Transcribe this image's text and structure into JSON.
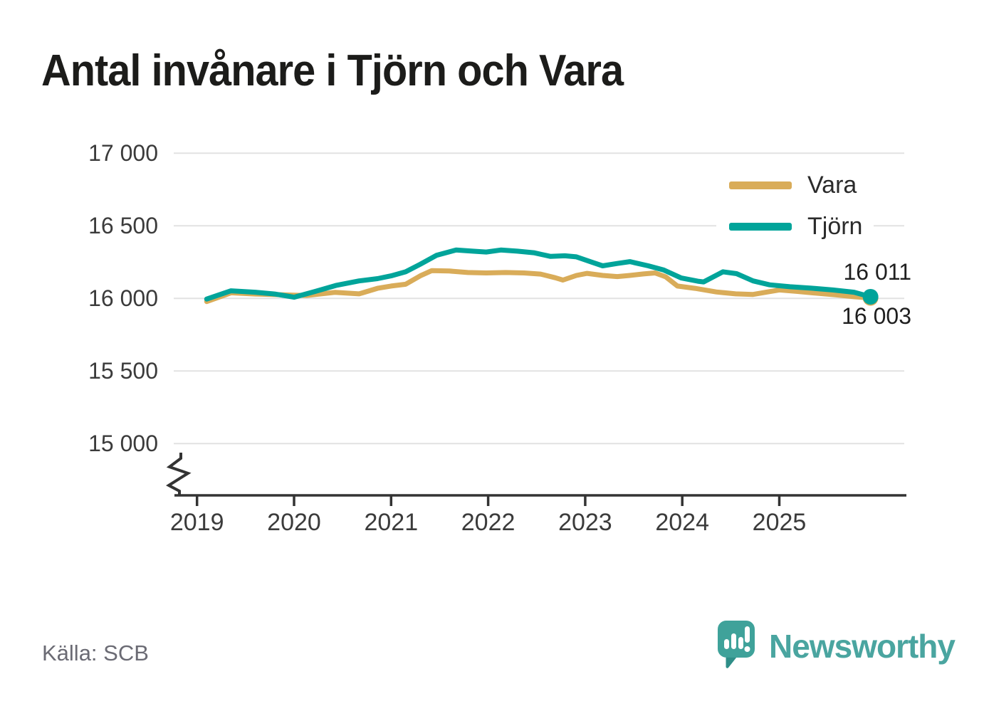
{
  "title": "Antal invånare i Tjörn och Vara",
  "source_label": "Källa: SCB",
  "branding": {
    "wordmark": "Newsworthy"
  },
  "colors": {
    "vara": "#D9AC59",
    "tjorn": "#00A49A",
    "grid": "#E2E2E2",
    "axis": "#333333",
    "tick_text": "#3B3B3B",
    "muted_text": "#6B6B74",
    "brand_bubble": "#3FA29A",
    "brand_wordmark": "#4AA5A0"
  },
  "chart_data": {
    "type": "line",
    "title": "Antal invånare i Tjörn och Vara",
    "source": "Källa: SCB",
    "grid": "horizontal",
    "legend_position": "top-right",
    "x_axis": {
      "ticks": [
        2019,
        2020,
        2021,
        2022,
        2023,
        2024,
        2025
      ],
      "axis_break": true
    },
    "y_axis": {
      "ticks": [
        {
          "value": 17000,
          "label": "17 000"
        },
        {
          "value": 16500,
          "label": "16 500"
        },
        {
          "value": 16000,
          "label": "16 000"
        },
        {
          "value": 15500,
          "label": "15 500"
        },
        {
          "value": 15000,
          "label": "15 000"
        }
      ]
    },
    "series": [
      {
        "name": "Vara",
        "color": "#D9AC59",
        "end_label": "16 003",
        "last_value": 16003,
        "end_dot": true,
        "points": [
          [
            2019.1,
            15978
          ],
          [
            2019.35,
            16038
          ],
          [
            2019.6,
            16030
          ],
          [
            2019.8,
            16026
          ],
          [
            2020.0,
            16022
          ],
          [
            2020.13,
            16020
          ],
          [
            2020.42,
            16041
          ],
          [
            2020.67,
            16031
          ],
          [
            2020.86,
            16069
          ],
          [
            2021.0,
            16085
          ],
          [
            2021.15,
            16097
          ],
          [
            2021.3,
            16155
          ],
          [
            2021.42,
            16191
          ],
          [
            2021.6,
            16188
          ],
          [
            2021.79,
            16178
          ],
          [
            2021.98,
            16175
          ],
          [
            2022.18,
            16178
          ],
          [
            2022.37,
            16175
          ],
          [
            2022.54,
            16167
          ],
          [
            2022.69,
            16142
          ],
          [
            2022.77,
            16126
          ],
          [
            2022.91,
            16158
          ],
          [
            2023.02,
            16172
          ],
          [
            2023.18,
            16158
          ],
          [
            2023.33,
            16150
          ],
          [
            2023.46,
            16158
          ],
          [
            2023.6,
            16168
          ],
          [
            2023.72,
            16175
          ],
          [
            2023.83,
            16148
          ],
          [
            2023.95,
            16085
          ],
          [
            2024.13,
            16069
          ],
          [
            2024.35,
            16044
          ],
          [
            2024.55,
            16031
          ],
          [
            2024.73,
            16027
          ],
          [
            2024.88,
            16044
          ],
          [
            2025.0,
            16058
          ],
          [
            2025.18,
            16048
          ],
          [
            2025.38,
            16036
          ],
          [
            2025.58,
            16024
          ],
          [
            2025.78,
            16011
          ],
          [
            2025.94,
            16003
          ]
        ]
      },
      {
        "name": "Tjörn",
        "color": "#00A49A",
        "end_label": "16 011",
        "last_value": 16011,
        "end_dot": true,
        "points": [
          [
            2019.1,
            15995
          ],
          [
            2019.35,
            16052
          ],
          [
            2019.6,
            16042
          ],
          [
            2019.8,
            16030
          ],
          [
            2020.0,
            16008
          ],
          [
            2020.22,
            16048
          ],
          [
            2020.44,
            16090
          ],
          [
            2020.67,
            16120
          ],
          [
            2020.86,
            16136
          ],
          [
            2021.0,
            16155
          ],
          [
            2021.15,
            16183
          ],
          [
            2021.3,
            16235
          ],
          [
            2021.47,
            16297
          ],
          [
            2021.67,
            16333
          ],
          [
            2021.84,
            16325
          ],
          [
            2021.98,
            16319
          ],
          [
            2022.13,
            16333
          ],
          [
            2022.3,
            16325
          ],
          [
            2022.47,
            16314
          ],
          [
            2022.64,
            16289
          ],
          [
            2022.79,
            16293
          ],
          [
            2022.91,
            16286
          ],
          [
            2023.07,
            16249
          ],
          [
            2023.18,
            16224
          ],
          [
            2023.33,
            16240
          ],
          [
            2023.46,
            16253
          ],
          [
            2023.65,
            16224
          ],
          [
            2023.81,
            16195
          ],
          [
            2023.99,
            16140
          ],
          [
            2024.16,
            16118
          ],
          [
            2024.22,
            16113
          ],
          [
            2024.42,
            16183
          ],
          [
            2024.56,
            16170
          ],
          [
            2024.73,
            16120
          ],
          [
            2024.9,
            16093
          ],
          [
            2025.11,
            16080
          ],
          [
            2025.33,
            16070
          ],
          [
            2025.55,
            16058
          ],
          [
            2025.77,
            16042
          ],
          [
            2025.94,
            16011
          ]
        ]
      }
    ]
  }
}
